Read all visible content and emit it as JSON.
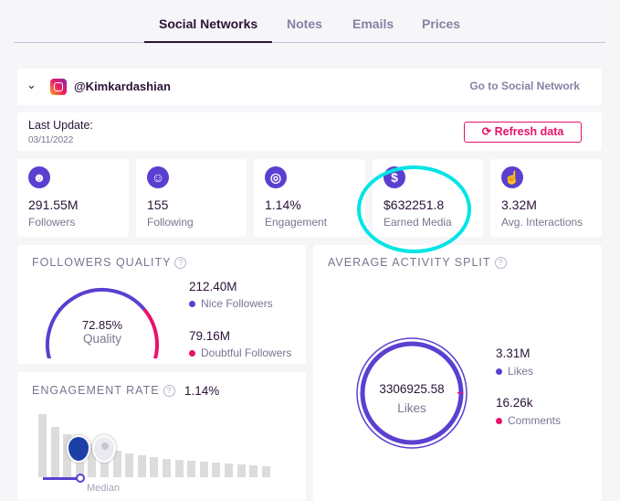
{
  "tabs": [
    {
      "label": "Social Networks",
      "active": true
    },
    {
      "label": "Notes"
    },
    {
      "label": "Emails"
    },
    {
      "label": "Prices"
    }
  ],
  "profile": {
    "handle": "@Kimkardashian",
    "network_icon": "instagram-icon",
    "go_link": "Go to Social Network"
  },
  "update": {
    "label": "Last Update:",
    "date": "03/11/2022",
    "refresh_label": "Refresh data"
  },
  "stats": [
    {
      "icon": "followers-icon",
      "value": "291.55M",
      "label": "Followers"
    },
    {
      "icon": "following-icon",
      "value": "155",
      "label": "Following"
    },
    {
      "icon": "target-icon",
      "value": "1.14%",
      "label": "Engagement"
    },
    {
      "icon": "dollar-icon",
      "value": "$632251.8",
      "label": "Earned Media",
      "highlighted": true
    },
    {
      "icon": "hand-pointer-icon",
      "value": "3.32M",
      "label": "Avg. Interactions"
    }
  ],
  "followers_quality": {
    "title": "FOLLOWERS QUALITY",
    "percent": 72.85,
    "percent_text": "72.85%",
    "center_label": "Quality",
    "nice": {
      "value": "212.40M",
      "label": "Nice Followers"
    },
    "doubtful": {
      "value": "79.16M",
      "label": "Doubtful Followers"
    }
  },
  "engagement_rate": {
    "title": "ENGAGEMENT RATE",
    "value": "1.14%",
    "median_label": "Median"
  },
  "activity": {
    "title": "AVERAGE ACTIVITY SPLIT",
    "center_value": "3306925.58",
    "center_label": "Likes",
    "likes": {
      "value": "3.31M",
      "label": "Likes"
    },
    "comments": {
      "value": "16.26k",
      "label": "Comments"
    }
  },
  "colors": {
    "accent": "#5b3fd0",
    "pink": "#e8116b",
    "highlight": "#00e5e5"
  }
}
